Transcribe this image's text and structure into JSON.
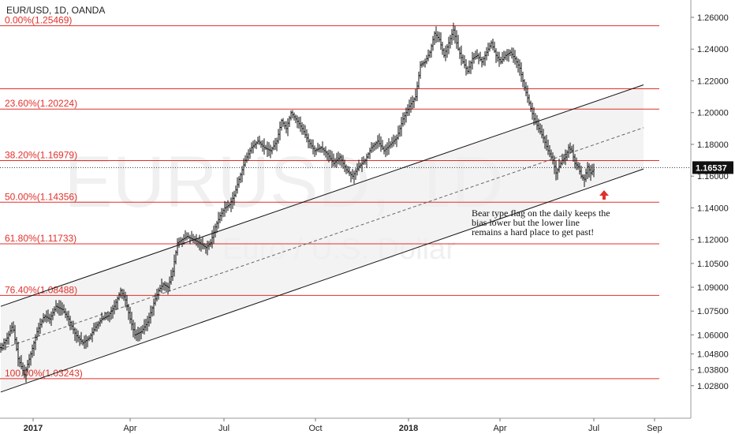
{
  "header": {
    "symbol_line": "EUR/USD, 1D, OANDA"
  },
  "watermark": {
    "main": "EURUSD, 1D",
    "sub": "Euro / U.S. Dollar"
  },
  "annotation": {
    "lines": [
      "Bear type flag on the daily keeps the",
      "bias lower but the lower line",
      "remains a hard place to get past!"
    ]
  },
  "colors": {
    "fib_line": "#e0312b",
    "fib_label": "#e0312b",
    "candles": "#111111",
    "channel": "#111111",
    "channel_fill": "#efefef",
    "arrow": "#e0312b",
    "axis_text": "#222222",
    "price_badge_bg": "#111111",
    "price_badge_text": "#ffffff"
  },
  "chart_data": {
    "type": "candlestick",
    "symbol": "EUR/USD",
    "timeframe": "1D",
    "source": "OANDA",
    "y_axis": {
      "ticks": [
        "1.26000",
        "1.24000",
        "1.22000",
        "1.20000",
        "1.18000",
        "1.16000",
        "1.14000",
        "1.12000",
        "1.10500",
        "1.09000",
        "1.07500",
        "1.06000",
        "1.04800",
        "1.03800",
        "1.02800"
      ],
      "current_price": "1.16537"
    },
    "x_axis": {
      "ticks": [
        "2017",
        "Apr",
        "Jul",
        "Oct",
        "2018",
        "Apr",
        "Jul",
        "Sep"
      ]
    },
    "fib_levels": [
      {
        "label": "0.00%(1.25469)",
        "value": 1.25469
      },
      {
        "label": "23.60%(1.20224)",
        "value": 1.20224
      },
      {
        "label": "38.20%(1.16979)",
        "value": 1.16979
      },
      {
        "label": "50.00%(1.14356)",
        "value": 1.14356
      },
      {
        "label": "61.80%(1.11733)",
        "value": 1.11733
      },
      {
        "label": "76.40%(1.08488)",
        "value": 1.08488
      },
      {
        "label": "100.00%(1.03243)",
        "value": 1.03243
      }
    ],
    "extra_levels": [
      1.215
    ],
    "price_path": [
      [
        0,
        1.052
      ],
      [
        8,
        1.058
      ],
      [
        15,
        1.066
      ],
      [
        22,
        1.045
      ],
      [
        30,
        1.035
      ],
      [
        38,
        1.048
      ],
      [
        46,
        1.062
      ],
      [
        55,
        1.072
      ],
      [
        62,
        1.07
      ],
      [
        70,
        1.078
      ],
      [
        78,
        1.076
      ],
      [
        86,
        1.07
      ],
      [
        95,
        1.06
      ],
      [
        104,
        1.055
      ],
      [
        112,
        1.058
      ],
      [
        120,
        1.065
      ],
      [
        128,
        1.07
      ],
      [
        136,
        1.072
      ],
      [
        144,
        1.078
      ],
      [
        152,
        1.088
      ],
      [
        158,
        1.082
      ],
      [
        164,
        1.07
      ],
      [
        170,
        1.06
      ],
      [
        178,
        1.062
      ],
      [
        186,
        1.068
      ],
      [
        194,
        1.08
      ],
      [
        200,
        1.088
      ],
      [
        206,
        1.092
      ],
      [
        212,
        1.09
      ],
      [
        218,
        1.1
      ],
      [
        224,
        1.118
      ],
      [
        230,
        1.12
      ],
      [
        236,
        1.122
      ],
      [
        244,
        1.12
      ],
      [
        252,
        1.118
      ],
      [
        260,
        1.115
      ],
      [
        266,
        1.118
      ],
      [
        272,
        1.128
      ],
      [
        278,
        1.135
      ],
      [
        284,
        1.14
      ],
      [
        290,
        1.142
      ],
      [
        296,
        1.148
      ],
      [
        302,
        1.158
      ],
      [
        310,
        1.17
      ],
      [
        318,
        1.178
      ],
      [
        326,
        1.182
      ],
      [
        334,
        1.178
      ],
      [
        342,
        1.176
      ],
      [
        350,
        1.182
      ],
      [
        356,
        1.195
      ],
      [
        362,
        1.19
      ],
      [
        368,
        1.2
      ],
      [
        374,
        1.196
      ],
      [
        382,
        1.19
      ],
      [
        390,
        1.182
      ],
      [
        398,
        1.176
      ],
      [
        406,
        1.178
      ],
      [
        414,
        1.174
      ],
      [
        422,
        1.168
      ],
      [
        430,
        1.172
      ],
      [
        438,
        1.164
      ],
      [
        446,
        1.16
      ],
      [
        454,
        1.166
      ],
      [
        462,
        1.17
      ],
      [
        470,
        1.178
      ],
      [
        478,
        1.182
      ],
      [
        486,
        1.176
      ],
      [
        494,
        1.18
      ],
      [
        502,
        1.184
      ],
      [
        510,
        1.196
      ],
      [
        518,
        1.204
      ],
      [
        526,
        1.21
      ],
      [
        532,
        1.23
      ],
      [
        538,
        1.232
      ],
      [
        544,
        1.238
      ],
      [
        550,
        1.25
      ],
      [
        556,
        1.246
      ],
      [
        562,
        1.236
      ],
      [
        568,
        1.244
      ],
      [
        574,
        1.252
      ],
      [
        580,
        1.24
      ],
      [
        586,
        1.232
      ],
      [
        592,
        1.226
      ],
      [
        598,
        1.234
      ],
      [
        604,
        1.236
      ],
      [
        610,
        1.232
      ],
      [
        616,
        1.238
      ],
      [
        622,
        1.244
      ],
      [
        628,
        1.236
      ],
      [
        634,
        1.232
      ],
      [
        640,
        1.236
      ],
      [
        646,
        1.238
      ],
      [
        652,
        1.234
      ],
      [
        658,
        1.228
      ],
      [
        664,
        1.216
      ],
      [
        670,
        1.206
      ],
      [
        676,
        1.196
      ],
      [
        682,
        1.19
      ],
      [
        688,
        1.184
      ],
      [
        694,
        1.176
      ],
      [
        700,
        1.17
      ],
      [
        704,
        1.162
      ],
      [
        708,
        1.166
      ],
      [
        712,
        1.17
      ],
      [
        716,
        1.172
      ],
      [
        720,
        1.178
      ],
      [
        724,
        1.176
      ],
      [
        728,
        1.168
      ],
      [
        732,
        1.166
      ],
      [
        736,
        1.16
      ],
      [
        740,
        1.158
      ],
      [
        744,
        1.166
      ],
      [
        748,
        1.162
      ],
      [
        752,
        1.164
      ]
    ],
    "channel": {
      "upper": [
        [
          0,
          1.078
        ],
        [
          815,
          1.2175
        ]
      ],
      "lower": [
        [
          0,
          1.024
        ],
        [
          815,
          1.1645
        ]
      ],
      "mid": [
        [
          0,
          1.051
        ],
        [
          815,
          1.1905
        ]
      ]
    },
    "grid": false
  }
}
